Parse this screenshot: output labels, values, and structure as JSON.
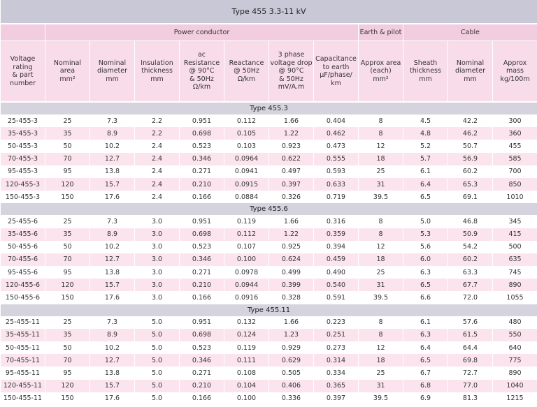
{
  "title": "Type 455 3.3-11 kV",
  "groups": [
    "Power conductor",
    "Earth & pilot",
    "Cable"
  ],
  "columns": [
    "Voltage\nrating\n& part\nnumber",
    "Nominal\narea\nmm²",
    "Nominal\ndiameter\nmm",
    "Insulation\nthickness\nmm",
    "ac\nResistance\n@ 90°C\n& 50Hz\nΩ/km",
    "Reactance\n@ 50Hz\nΩ/km",
    "3 phase\nvoltage drop\n@ 90°C\n& 50Hz\nmV/A.m",
    "Capacitance\nto earth\nµF/phase/\nkm",
    "Approx area\n(each)\nmm²",
    "Sheath\nthickness\nmm",
    "Nominal\ndiameter\nmm",
    "Approx\nmass\nkg/100m"
  ],
  "sections": [
    {
      "title": "Type 455.3",
      "rows": [
        [
          "25-455-3",
          "25",
          "7.3",
          "2.2",
          "0.951",
          "0.112",
          "1.66",
          "0.404",
          "8",
          "4.5",
          "42.2",
          "300"
        ],
        [
          "35-455-3",
          "35",
          "8.9",
          "2.2",
          "0.698",
          "0.105",
          "1.22",
          "0.462",
          "8",
          "4.8",
          "46.2",
          "360"
        ],
        [
          "50-455-3",
          "50",
          "10.2",
          "2.4",
          "0.523",
          "0.103",
          "0.923",
          "0.473",
          "12",
          "5.2",
          "50.7",
          "455"
        ],
        [
          "70-455-3",
          "70",
          "12.7",
          "2.4",
          "0.346",
          "0.0964",
          "0.622",
          "0.555",
          "18",
          "5.7",
          "56.9",
          "585"
        ],
        [
          "95-455-3",
          "95",
          "13.8",
          "2.4",
          "0.271",
          "0.0941",
          "0.497",
          "0.593",
          "25",
          "6.1",
          "60.2",
          "700"
        ],
        [
          "120-455-3",
          "120",
          "15.7",
          "2.4",
          "0.210",
          "0.0915",
          "0.397",
          "0.633",
          "31",
          "6.4",
          "65.3",
          "850"
        ],
        [
          "150-455-3",
          "150",
          "17.6",
          "2.4",
          "0.166",
          "0.0884",
          "0.326",
          "0.719",
          "39.5",
          "6.5",
          "69.1",
          "1010"
        ]
      ]
    },
    {
      "title": "Type 455.6",
      "rows": [
        [
          "25-455-6",
          "25",
          "7.3",
          "3.0",
          "0.951",
          "0.119",
          "1.66",
          "0.316",
          "8",
          "5.0",
          "46.8",
          "345"
        ],
        [
          "35-455-6",
          "35",
          "8.9",
          "3.0",
          "0.698",
          "0.112",
          "1.22",
          "0.359",
          "8",
          "5.3",
          "50.9",
          "415"
        ],
        [
          "50-455-6",
          "50",
          "10.2",
          "3.0",
          "0.523",
          "0.107",
          "0.925",
          "0.394",
          "12",
          "5.6",
          "54.2",
          "500"
        ],
        [
          "70-455-6",
          "70",
          "12.7",
          "3.0",
          "0.346",
          "0.100",
          "0.624",
          "0.459",
          "18",
          "6.0",
          "60.2",
          "635"
        ],
        [
          "95-455-6",
          "95",
          "13.8",
          "3.0",
          "0.271",
          "0.0978",
          "0.499",
          "0.490",
          "25",
          "6.3",
          "63.3",
          "745"
        ],
        [
          "120-455-6",
          "120",
          "15.7",
          "3.0",
          "0.210",
          "0.0944",
          "0.399",
          "0.540",
          "31",
          "6.5",
          "67.7",
          "890"
        ],
        [
          "150-455-6",
          "150",
          "17.6",
          "3.0",
          "0.166",
          "0.0916",
          "0.328",
          "0.591",
          "39.5",
          "6.6",
          "72.0",
          "1055"
        ]
      ]
    },
    {
      "title": "Type 455.11",
      "rows": [
        [
          "25-455-11",
          "25",
          "7.3",
          "5.0",
          "0.951",
          "0.132",
          "1.66",
          "0.223",
          "8",
          "6.1",
          "57.6",
          "480"
        ],
        [
          "35-455-11",
          "35",
          "8.9",
          "5.0",
          "0.698",
          "0.124",
          "1.23",
          "0.251",
          "8",
          "6.3",
          "61.5",
          "550"
        ],
        [
          "50-455-11",
          "50",
          "10.2",
          "5.0",
          "0.523",
          "0.119",
          "0.929",
          "0.273",
          "12",
          "6.4",
          "64.4",
          "640"
        ],
        [
          "70-455-11",
          "70",
          "12.7",
          "5.0",
          "0.346",
          "0.111",
          "0.629",
          "0.314",
          "18",
          "6.5",
          "69.8",
          "775"
        ],
        [
          "95-455-11",
          "95",
          "13.8",
          "5.0",
          "0.271",
          "0.108",
          "0.505",
          "0.334",
          "25",
          "6.7",
          "72.7",
          "890"
        ],
        [
          "120-455-11",
          "120",
          "15.7",
          "5.0",
          "0.210",
          "0.104",
          "0.406",
          "0.365",
          "31",
          "6.8",
          "77.0",
          "1040"
        ],
        [
          "150-455-11",
          "150",
          "17.6",
          "5.0",
          "0.166",
          "0.100",
          "0.336",
          "0.397",
          "39.5",
          "6.9",
          "81.3",
          "1215"
        ]
      ]
    }
  ]
}
